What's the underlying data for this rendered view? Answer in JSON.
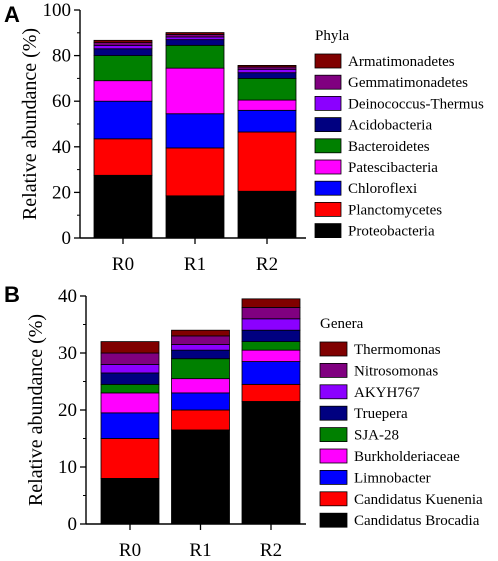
{
  "chart_data": [
    {
      "panel": "A",
      "type": "bar",
      "stacked": true,
      "categories": [
        "R0",
        "R1",
        "R2"
      ],
      "ylabel": "Relative abundance (%)",
      "ylim": [
        0,
        100
      ],
      "yticks": [
        0,
        20,
        40,
        60,
        80,
        100
      ],
      "legend_title": "Phyla",
      "legend_position": "right",
      "series": [
        {
          "name": "Proteobacteria",
          "color": "#000000",
          "values": [
            27.5,
            18.5,
            20.5
          ]
        },
        {
          "name": "Planctomycetes",
          "color": "#ff0000",
          "values": [
            16,
            21,
            26
          ]
        },
        {
          "name": "Chloroflexi",
          "color": "#0000ff",
          "values": [
            16.5,
            15,
            9.5
          ]
        },
        {
          "name": "Patescibacteria",
          "color": "#ff00ff",
          "values": [
            9,
            20,
            4.5
          ]
        },
        {
          "name": "Bacteroidetes",
          "color": "#008000",
          "values": [
            11,
            10,
            9.5
          ]
        },
        {
          "name": "Acidobacteria",
          "color": "#000080",
          "values": [
            3,
            2.5,
            2.5
          ]
        },
        {
          "name": "Deinococcus-Thermus",
          "color": "#8b00ff",
          "values": [
            1.5,
            1.2,
            1.5
          ]
        },
        {
          "name": "Gemmatimonadetes",
          "color": "#800080",
          "values": [
            1.2,
            1.1,
            1
          ]
        },
        {
          "name": "Armatimonadetes",
          "color": "#800000",
          "values": [
            1,
            0.8,
            0.7
          ]
        }
      ]
    },
    {
      "panel": "B",
      "type": "bar",
      "stacked": true,
      "categories": [
        "R0",
        "R1",
        "R2"
      ],
      "ylabel": "Relative abundance (%)",
      "ylim": [
        0,
        40
      ],
      "yticks": [
        0,
        10,
        20,
        30,
        40
      ],
      "legend_title": "Genera",
      "legend_position": "right",
      "series": [
        {
          "name": "Candidatus Brocadia",
          "color": "#000000",
          "values": [
            8,
            16.5,
            21.5
          ]
        },
        {
          "name": "Candidatus Kuenenia",
          "color": "#ff0000",
          "values": [
            7,
            3.5,
            3
          ]
        },
        {
          "name": "Limnobacter",
          "color": "#0000ff",
          "values": [
            4.5,
            3,
            4
          ]
        },
        {
          "name": "Burkholderiaceae",
          "color": "#ff00ff",
          "values": [
            3.5,
            2.5,
            2
          ]
        },
        {
          "name": "SJA-28",
          "color": "#008000",
          "values": [
            1.5,
            3.5,
            1.5
          ]
        },
        {
          "name": "Truepera",
          "color": "#000080",
          "values": [
            2,
            1.5,
            2
          ]
        },
        {
          "name": "AKYH767",
          "color": "#8b00ff",
          "values": [
            1.5,
            1,
            2
          ]
        },
        {
          "name": "Nitrosomonas",
          "color": "#800080",
          "values": [
            2,
            1.5,
            2
          ]
        },
        {
          "name": "Thermomonas",
          "color": "#800000",
          "values": [
            2,
            1,
            1.5
          ]
        }
      ]
    }
  ]
}
